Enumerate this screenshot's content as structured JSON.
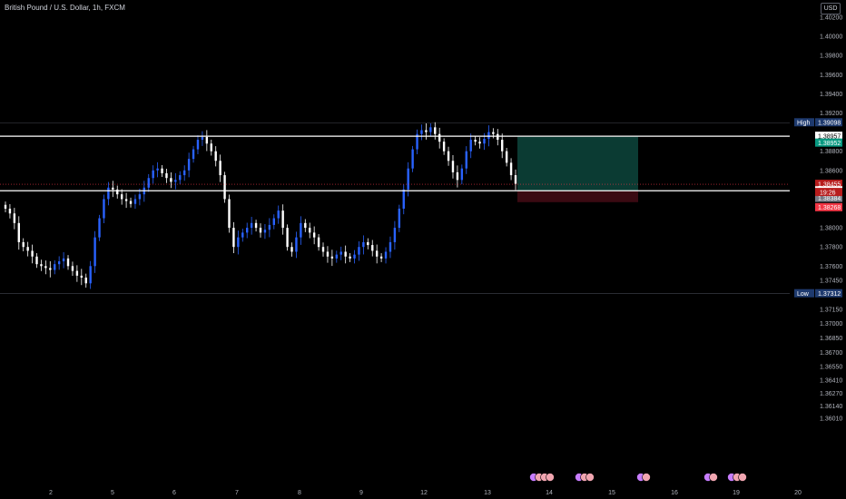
{
  "header": {
    "symbol_title": "British Pound / U.S. Dollar, 1h, FXCM",
    "currency_button": "USD"
  },
  "colors": {
    "background": "#000000",
    "candle_up": "#2962ff",
    "candle_down": "#ffffff",
    "level_line": "#ffffff",
    "profit_zone": "#0b3b33",
    "loss_zone": "#3a0a12",
    "high_tag": "#1e3a6e",
    "take_profit_tag": "#089981",
    "stop_tag": "#f23645",
    "current_tag": "#b71c1c"
  },
  "chart_data": {
    "type": "candlestick",
    "title": "British Pound / U.S. Dollar, 1h, FXCM",
    "ylim": [
      1.36,
      1.403
    ],
    "y_ticks": [
      "1.40200",
      "1.40000",
      "1.39800",
      "1.39600",
      "1.39400",
      "1.39200",
      "1.38800",
      "1.38600",
      "1.38000",
      "1.37800",
      "1.37600",
      "1.37450",
      "1.37150",
      "1.37000",
      "1.36850",
      "1.36700",
      "1.36550",
      "1.36410",
      "1.36270",
      "1.36140",
      "1.36010"
    ],
    "x_ticks": [
      "2",
      "5",
      "6",
      "7",
      "8",
      "9",
      "12",
      "13",
      "14",
      "15",
      "16",
      "19",
      "20"
    ],
    "price_levels": [
      {
        "label": "High",
        "value": "1.39098"
      },
      {
        "label": "",
        "value": "1.38957"
      },
      {
        "label": "",
        "value": "1.38952"
      },
      {
        "label": "",
        "value": "1.38455"
      },
      {
        "label": "",
        "value": "19:26"
      },
      {
        "label": "",
        "value": "1.38387"
      },
      {
        "label": "",
        "value": "1.38384"
      },
      {
        "label": "",
        "value": "1.38268"
      },
      {
        "label": "Low",
        "value": "1.37312"
      }
    ],
    "horizontal_lines": [
      1.38957,
      1.38387
    ],
    "position": {
      "type": "long",
      "entry": 1.38384,
      "target": 1.38952,
      "stop": 1.38268
    },
    "event_markers": [
      {
        "x": "13",
        "count": 4
      },
      {
        "x": "14",
        "count": 3
      },
      {
        "x": "15",
        "count": 2
      },
      {
        "x": "16",
        "count": 2
      },
      {
        "x": "19",
        "count": 3
      }
    ],
    "closes": [
      1.382,
      1.3815,
      1.3805,
      1.3785,
      1.378,
      1.3776,
      1.377,
      1.3762,
      1.376,
      1.3758,
      1.3756,
      1.3762,
      1.3765,
      1.3768,
      1.376,
      1.3755,
      1.375,
      1.3748,
      1.3742,
      1.376,
      1.379,
      1.381,
      1.383,
      1.3842,
      1.384,
      1.3835,
      1.383,
      1.3828,
      1.3825,
      1.383,
      1.3835,
      1.3842,
      1.3852,
      1.386,
      1.3862,
      1.3857,
      1.3852,
      1.3848,
      1.385,
      1.3855,
      1.386,
      1.3872,
      1.3882,
      1.3892,
      1.3895,
      1.3888,
      1.388,
      1.387,
      1.3855,
      1.383,
      1.38,
      1.378,
      1.379,
      1.3795,
      1.38,
      1.3805,
      1.38,
      1.3795,
      1.3798,
      1.3803,
      1.381,
      1.3818,
      1.38,
      1.378,
      1.3775,
      1.379,
      1.3805,
      1.38,
      1.3795,
      1.379,
      1.378,
      1.3775,
      1.377,
      1.3768,
      1.3772,
      1.3775,
      1.377,
      1.3768,
      1.3772,
      1.378,
      1.3785,
      1.3782,
      1.3776,
      1.377,
      1.3768,
      1.3775,
      1.3785,
      1.38,
      1.382,
      1.384,
      1.3862,
      1.3882,
      1.3898,
      1.3902,
      1.39,
      1.3905,
      1.3898,
      1.389,
      1.388,
      1.387,
      1.3858,
      1.385,
      1.3862,
      1.388,
      1.3892,
      1.389,
      1.3888,
      1.3893,
      1.39,
      1.3898,
      1.3892,
      1.388,
      1.3868,
      1.3855,
      1.3846
    ]
  }
}
